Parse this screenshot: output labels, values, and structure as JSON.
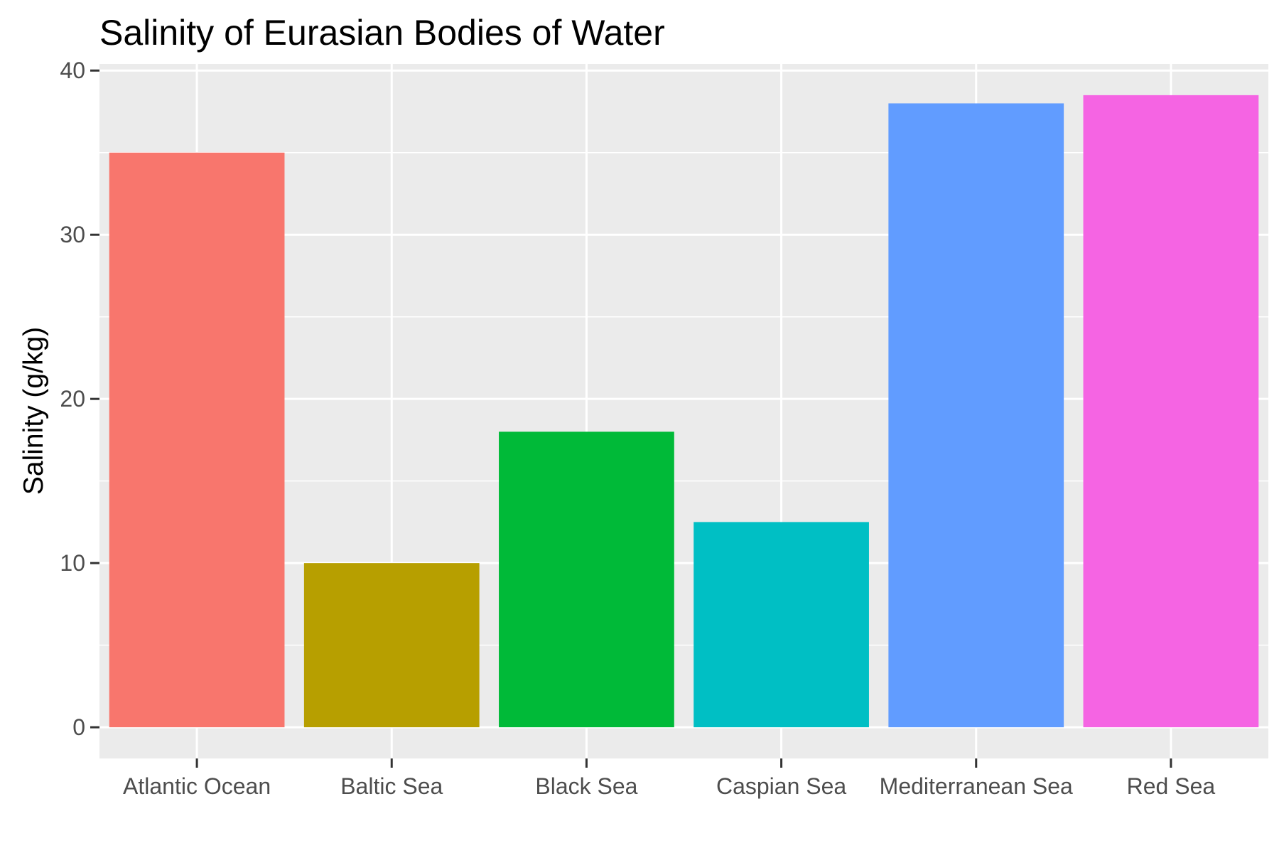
{
  "chart_data": {
    "type": "bar",
    "title": "Salinity of Eurasian Bodies of Water",
    "xlabel": "",
    "ylabel": "Salinity (g/kg)",
    "categories": [
      "Atlantic Ocean",
      "Baltic Sea",
      "Black Sea",
      "Caspian Sea",
      "Mediterranean Sea",
      "Red Sea"
    ],
    "values": [
      35,
      10,
      18,
      12.5,
      38,
      38.5
    ],
    "colors": [
      "#F8766D",
      "#B79F00",
      "#00BA38",
      "#00BFC4",
      "#619CFF",
      "#F564E3"
    ],
    "ylim": [
      -1.9,
      40.4
    ],
    "yticks": [
      0,
      10,
      20,
      30,
      40
    ],
    "ytick_labels": [
      "0",
      "10",
      "20",
      "30",
      "40"
    ],
    "yminor": [
      5,
      15,
      25,
      35
    ],
    "grid": true,
    "legend": "none",
    "panel_background": "#EBEBEB",
    "grid_color": "#FFFFFF"
  }
}
